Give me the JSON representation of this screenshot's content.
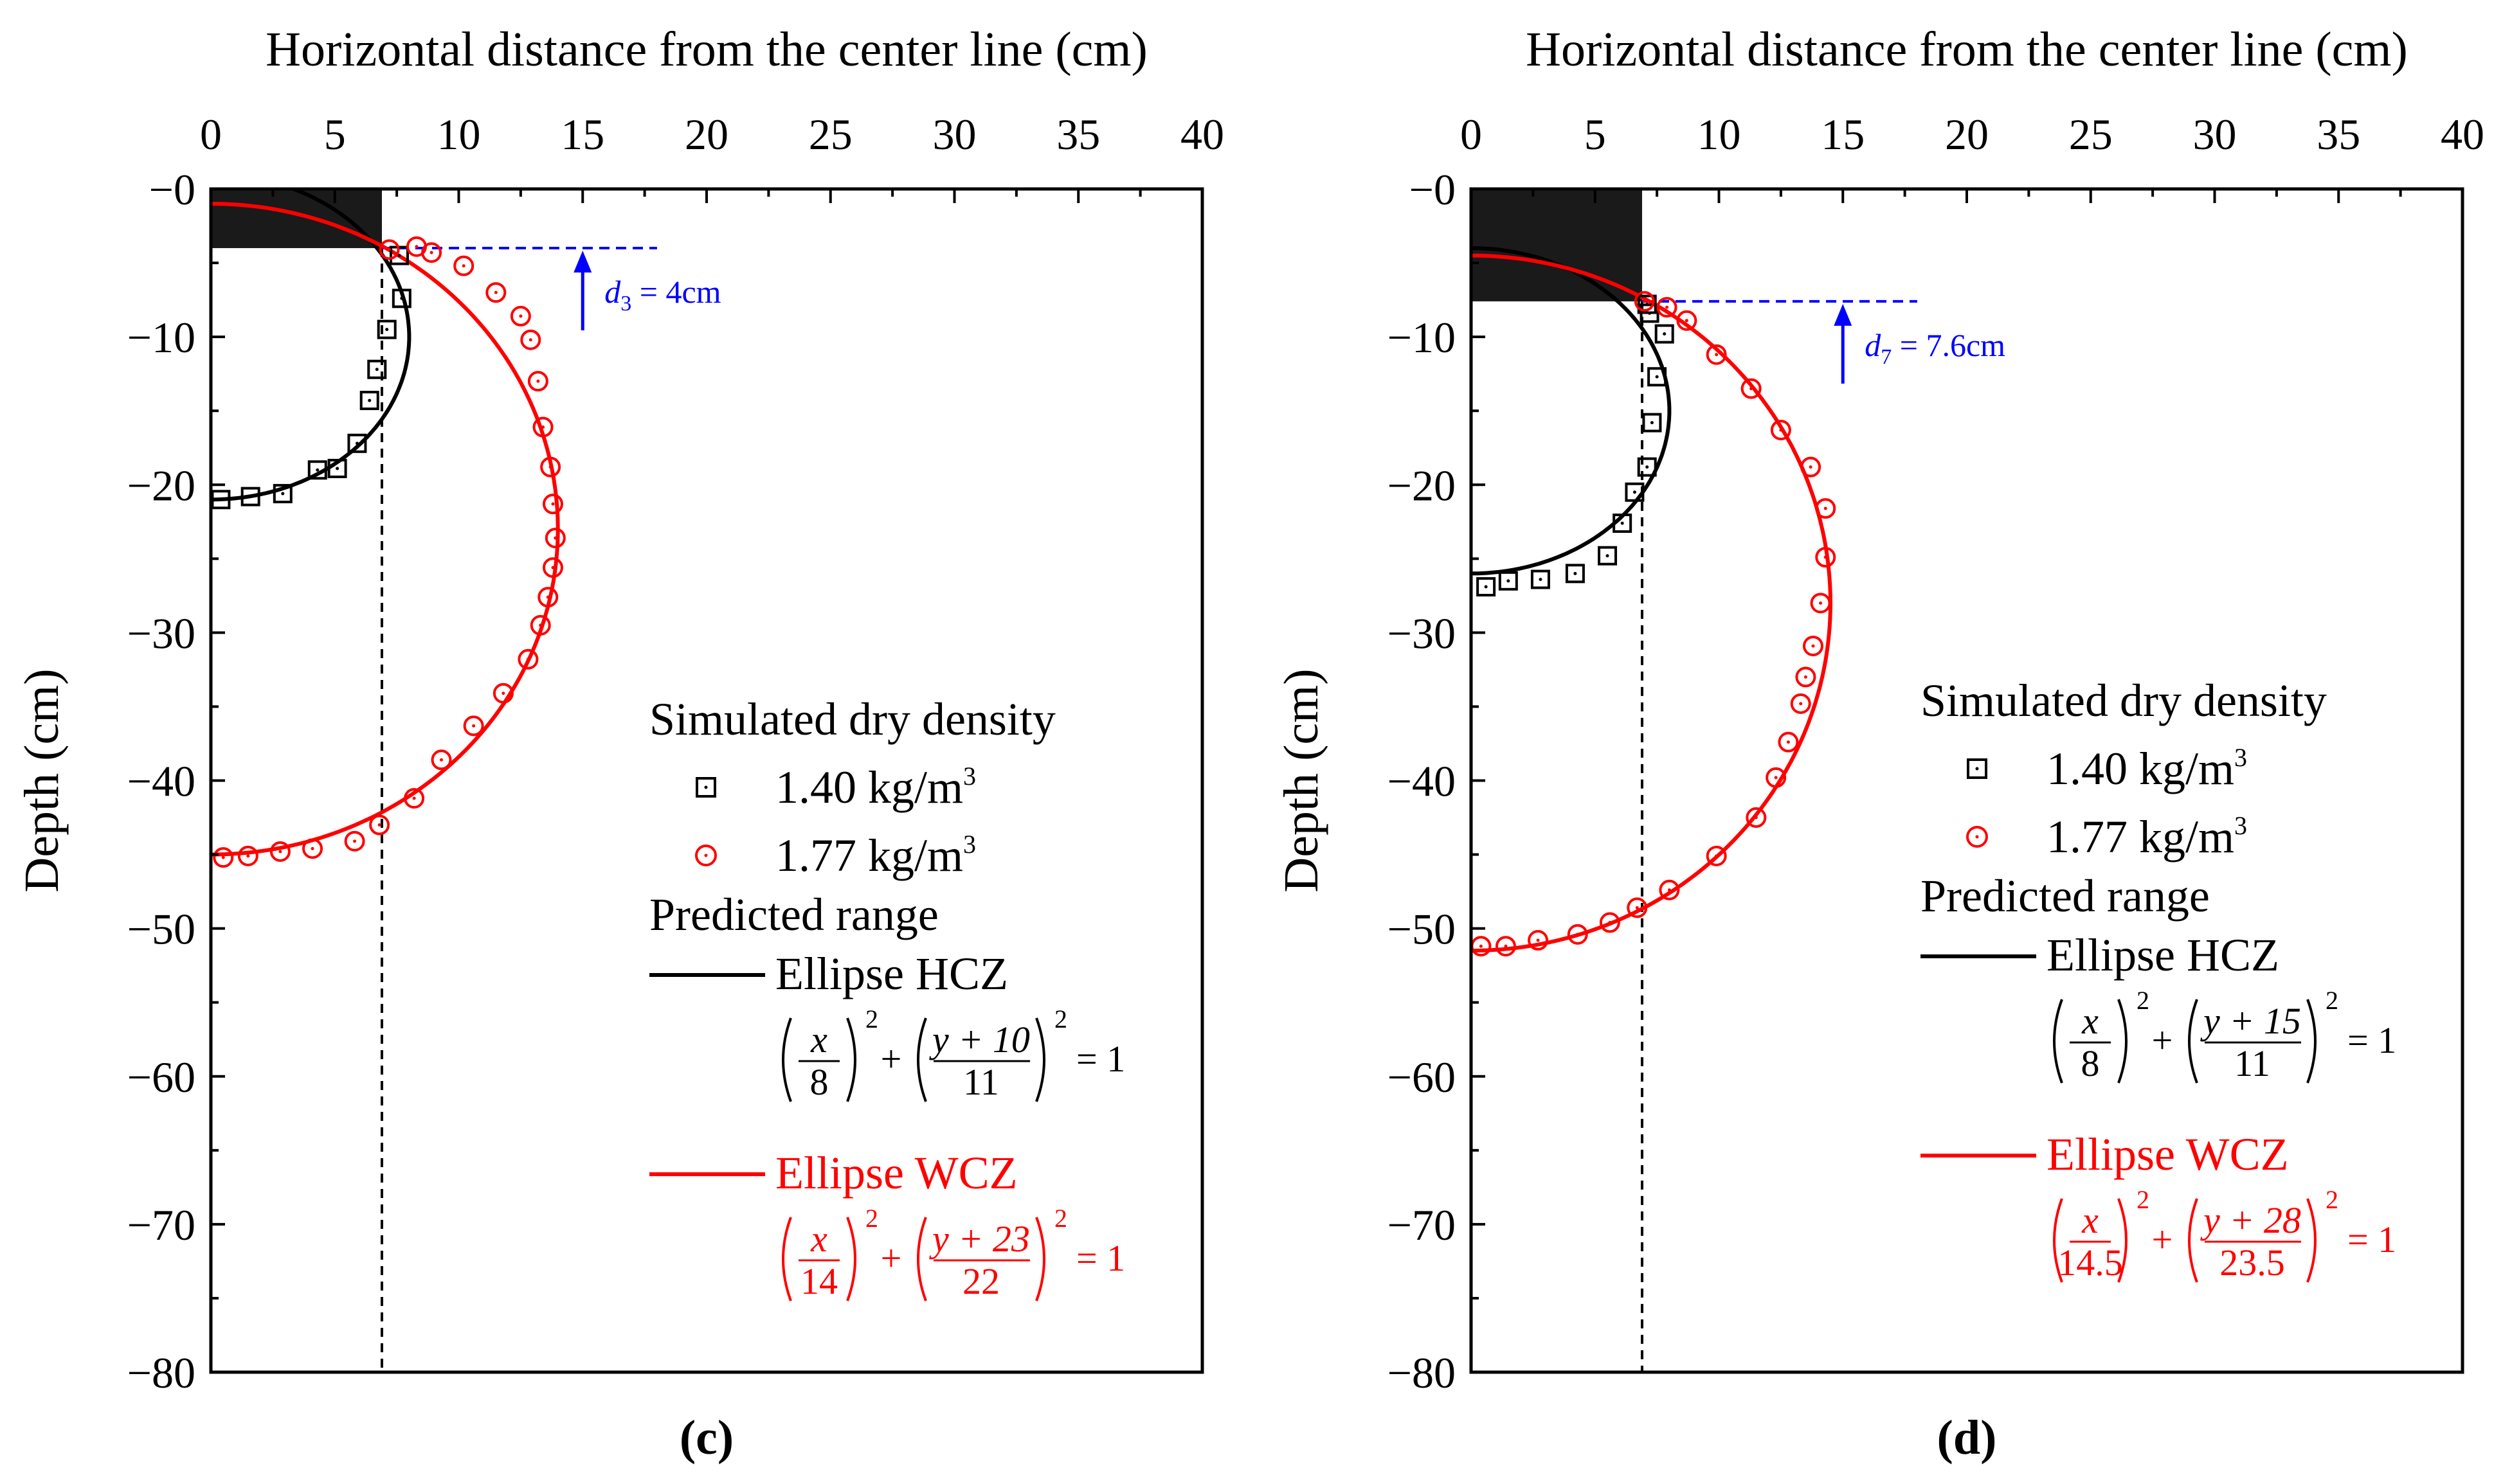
{
  "chart_data": [
    {
      "type": "scatter",
      "panel_label": "(c)",
      "xlabel": "Horizontal distance from the center line (cm)",
      "ylabel": "Depth (cm)",
      "xlim": [
        0,
        40
      ],
      "ylim": [
        -80,
        0
      ],
      "xticks": [
        "0",
        "5",
        "10",
        "15",
        "20",
        "25",
        "30",
        "35",
        "40"
      ],
      "yticks": [
        "−0",
        "−10",
        "−20",
        "−30",
        "−40",
        "−50",
        "−60",
        "−70",
        "−80"
      ],
      "block": {
        "x0": 0,
        "x1": 6.9,
        "y0": 0,
        "y1": -4
      },
      "center_line_x": 6.9,
      "annotation": {
        "sym": "d",
        "sub": "3",
        "rest": " = 4cm",
        "x": 15,
        "y": -4
      },
      "legend_header": "Simulated dry density",
      "legend_predicted": "Predicted range",
      "series": [
        {
          "name": "1.40 kg/m",
          "sup": "3",
          "color": "#000000",
          "marker": "square",
          "x": [
            0.4,
            1.6,
            2.9,
            4.3,
            5.1,
            5.9,
            6.4,
            6.7,
            7.1,
            7.7,
            7.6
          ],
          "y": [
            -21.0,
            -20.8,
            -20.6,
            -19.0,
            -18.9,
            -17.2,
            -14.3,
            -12.2,
            -9.5,
            -7.4,
            -4.5
          ]
        },
        {
          "name": "1.77 kg/m",
          "sup": "3",
          "color": "#ff0000",
          "marker": "circle",
          "x": [
            0.5,
            1.5,
            2.8,
            4.1,
            5.8,
            6.8,
            8.2,
            9.3,
            10.6,
            11.8,
            12.8,
            13.3,
            13.6,
            13.8,
            13.9,
            13.8,
            13.7,
            13.4,
            13.2,
            12.9,
            12.5,
            11.5,
            10.2,
            8.9,
            8.3,
            7.2
          ],
          "y": [
            -45.2,
            -45.1,
            -44.8,
            -44.6,
            -44.1,
            -43.0,
            -41.2,
            -38.6,
            -36.3,
            -34.1,
            -31.8,
            -29.5,
            -27.6,
            -25.6,
            -23.6,
            -21.3,
            -18.8,
            -16.1,
            -13.0,
            -10.2,
            -8.6,
            -7.0,
            -5.2,
            -4.3,
            -3.9,
            -4.1
          ]
        }
      ],
      "fits": [
        {
          "name": "Ellipse HCZ",
          "color": "#000000",
          "a": 8,
          "b": 11,
          "k": -10,
          "eq_a": "8",
          "eq_num": "y + 10",
          "eq_den": "11",
          "eq_tail": "= 1"
        },
        {
          "name": "Ellipse WCZ",
          "color": "#ff0000",
          "a": 14,
          "b": 22,
          "k": -23,
          "eq_a": "14",
          "eq_num": "y + 23",
          "eq_den": "22",
          "eq_tail": "= 1"
        }
      ]
    },
    {
      "type": "scatter",
      "panel_label": "(d)",
      "xlabel": "Horizontal distance from the center line (cm)",
      "ylabel": "Depth (cm)",
      "xlim": [
        0,
        40
      ],
      "ylim": [
        -80,
        0
      ],
      "xticks": [
        "0",
        "5",
        "10",
        "15",
        "20",
        "25",
        "30",
        "35",
        "40"
      ],
      "yticks": [
        "−0",
        "−10",
        "−20",
        "−30",
        "−40",
        "−50",
        "−60",
        "−70",
        "−80"
      ],
      "block": {
        "x0": 0,
        "x1": 6.9,
        "y0": 0,
        "y1": -7.6
      },
      "center_line_x": 6.9,
      "annotation": {
        "sym": "d",
        "sub": "7",
        "rest": " = 7.6cm",
        "x": 15,
        "y": -7.6
      },
      "legend_header": "Simulated dry density",
      "legend_predicted": "Predicted range",
      "series": [
        {
          "name": "1.40 kg/m",
          "sup": "3",
          "color": "#000000",
          "marker": "square",
          "x": [
            0.6,
            1.5,
            2.8,
            4.2,
            5.5,
            6.1,
            6.6,
            7.1,
            7.3,
            7.5,
            7.8,
            7.2,
            7.1
          ],
          "y": [
            -26.9,
            -26.5,
            -26.4,
            -26.0,
            -24.8,
            -22.6,
            -20.5,
            -18.8,
            -15.8,
            -12.7,
            -9.8,
            -8.4,
            -7.8
          ]
        },
        {
          "name": "1.77 kg/m",
          "sup": "3",
          "color": "#ff0000",
          "marker": "circle",
          "x": [
            0.4,
            1.4,
            2.7,
            4.3,
            5.6,
            6.7,
            8.0,
            9.9,
            11.5,
            12.3,
            12.8,
            13.3,
            13.5,
            13.8,
            14.1,
            14.3,
            14.3,
            13.7,
            12.5,
            11.3,
            9.9,
            8.7,
            7.9,
            7.0
          ],
          "y": [
            -51.2,
            -51.2,
            -50.8,
            -50.4,
            -49.6,
            -48.6,
            -47.4,
            -45.1,
            -42.5,
            -39.8,
            -37.4,
            -34.8,
            -33.0,
            -30.9,
            -28.0,
            -24.9,
            -21.6,
            -18.8,
            -16.3,
            -13.5,
            -11.2,
            -8.9,
            -8.0,
            -7.6
          ]
        }
      ],
      "fits": [
        {
          "name": "Ellipse HCZ",
          "color": "#000000",
          "a": 8,
          "b": 11,
          "k": -15,
          "eq_a": "8",
          "eq_num": "y + 15",
          "eq_den": "11",
          "eq_tail": "= 1"
        },
        {
          "name": "Ellipse WCZ",
          "color": "#ff0000",
          "a": 14.5,
          "b": 23.5,
          "k": -28,
          "eq_a": "14.5",
          "eq_num": "y + 28",
          "eq_den": "23.5",
          "eq_tail": "= 1"
        }
      ]
    }
  ]
}
